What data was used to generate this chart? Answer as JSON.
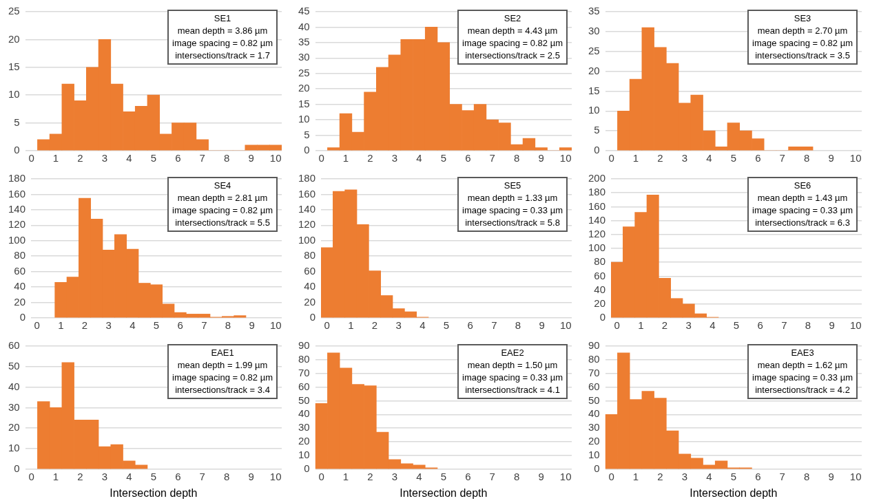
{
  "chart_data": [
    {
      "type": "histogram",
      "title": "SE1",
      "annotations": [
        "mean depth = 3.86 µm",
        "image spacing = 0.82 µm",
        "intersections/track = 1.7"
      ],
      "color": "#ed7d31",
      "grid": "y",
      "xlim": [
        -0.25,
        10.25
      ],
      "xticks": [
        0,
        1,
        2,
        3,
        4,
        5,
        6,
        7,
        8,
        9,
        10
      ],
      "ylim": [
        0,
        25
      ],
      "yticks": [
        0,
        5,
        10,
        15,
        20,
        25
      ],
      "bins": [
        0.25,
        0.75,
        1.25,
        1.75,
        2.25,
        2.75,
        3.25,
        3.75,
        4.25,
        4.75,
        5.25,
        5.75,
        6.25,
        6.75,
        7.25,
        7.75,
        8.25,
        8.75,
        9.25,
        9.75,
        10.25
      ],
      "values": [
        2,
        3,
        12,
        9,
        15,
        20,
        12,
        7,
        8,
        10,
        3,
        5,
        5,
        2,
        0,
        0,
        0,
        1,
        1,
        1
      ]
    },
    {
      "type": "histogram",
      "title": "SE2",
      "annotations": [
        "mean depth = 4.43 µm",
        "image spacing = 0.82 µm",
        "intersections/track = 2.5"
      ],
      "color": "#ed7d31",
      "grid": "y",
      "xlim": [
        -0.25,
        10.25
      ],
      "xticks": [
        0,
        1,
        2,
        3,
        4,
        5,
        6,
        7,
        8,
        9,
        10
      ],
      "ylim": [
        0,
        45
      ],
      "yticks": [
        0,
        5,
        10,
        15,
        20,
        25,
        30,
        35,
        40,
        45
      ],
      "bins": [
        0.25,
        0.75,
        1.25,
        1.75,
        2.25,
        2.75,
        3.25,
        3.75,
        4.25,
        4.75,
        5.25,
        5.75,
        6.25,
        6.75,
        7.25,
        7.75,
        8.25,
        8.75,
        9.25,
        9.75,
        10.25
      ],
      "values": [
        1,
        12,
        6,
        19,
        27,
        31,
        36,
        36,
        40,
        35,
        15,
        13,
        15,
        10,
        9,
        2,
        4,
        1,
        0,
        1
      ]
    },
    {
      "type": "histogram",
      "title": "SE3",
      "annotations": [
        "mean depth = 2.70 µm",
        "image spacing = 0.82 µm",
        "intersections/track = 3.5"
      ],
      "color": "#ed7d31",
      "grid": "y",
      "xlim": [
        -0.25,
        10.25
      ],
      "xticks": [
        0,
        1,
        2,
        3,
        4,
        5,
        6,
        7,
        8,
        9,
        10
      ],
      "ylim": [
        0,
        35
      ],
      "yticks": [
        0,
        5,
        10,
        15,
        20,
        25,
        30,
        35
      ],
      "bins": [
        0.25,
        0.75,
        1.25,
        1.75,
        2.25,
        2.75,
        3.25,
        3.75,
        4.25,
        4.75,
        5.25,
        5.75,
        6.25,
        6.75,
        7.25,
        7.75,
        8.25
      ],
      "values": [
        10,
        18,
        31,
        26,
        22,
        12,
        14,
        5,
        1,
        7,
        5,
        3,
        0,
        0,
        1,
        1
      ]
    },
    {
      "type": "histogram",
      "title": "SE4",
      "annotations": [
        "mean depth = 2.81 µm",
        "image spacing = 0.82 µm",
        "intersections/track = 5.5"
      ],
      "color": "#ed7d31",
      "grid": "y",
      "xlim": [
        -0.25,
        10.25
      ],
      "xticks": [
        0,
        1,
        2,
        3,
        4,
        5,
        6,
        7,
        8,
        9,
        10
      ],
      "ylim": [
        0,
        180
      ],
      "yticks": [
        0,
        20,
        40,
        60,
        80,
        100,
        120,
        140,
        160,
        180
      ],
      "bins": [
        0.75,
        1.25,
        1.75,
        2.25,
        2.75,
        3.25,
        3.75,
        4.25,
        4.75,
        5.25,
        5.75,
        6.25,
        6.75,
        7.25,
        7.75,
        8.25,
        8.75
      ],
      "values": [
        46,
        53,
        155,
        128,
        88,
        108,
        89,
        45,
        43,
        18,
        7,
        5,
        5,
        1,
        2,
        3
      ]
    },
    {
      "type": "histogram",
      "title": "SE5",
      "annotations": [
        "mean depth = 1.33 µm",
        "image spacing = 0.33 µm",
        "intersections/track = 5.8"
      ],
      "color": "#ed7d31",
      "grid": "y",
      "xlim": [
        -0.25,
        10.25
      ],
      "xticks": [
        0,
        1,
        2,
        3,
        4,
        5,
        6,
        7,
        8,
        9,
        10
      ],
      "ylim": [
        0,
        180
      ],
      "yticks": [
        0,
        20,
        40,
        60,
        80,
        100,
        120,
        140,
        160,
        180
      ],
      "bins": [
        -0.25,
        0.25,
        0.75,
        1.25,
        1.75,
        2.25,
        2.75,
        3.25,
        3.75,
        4.25
      ],
      "values": [
        91,
        164,
        166,
        121,
        61,
        29,
        12,
        8,
        1
      ]
    },
    {
      "type": "histogram",
      "title": "SE6",
      "annotations": [
        "mean depth = 1.43 µm",
        "image spacing = 0.33 µm",
        "intersections/track = 6.3"
      ],
      "color": "#ed7d31",
      "grid": "y",
      "xlim": [
        -0.25,
        10.25
      ],
      "xticks": [
        0,
        1,
        2,
        3,
        4,
        5,
        6,
        7,
        8,
        9,
        10
      ],
      "ylim": [
        0,
        200
      ],
      "yticks": [
        0,
        20,
        40,
        60,
        80,
        100,
        120,
        140,
        160,
        180,
        200
      ],
      "bins": [
        -0.25,
        0.25,
        0.75,
        1.25,
        1.75,
        2.25,
        2.75,
        3.25,
        3.75,
        4.25
      ],
      "values": [
        80,
        131,
        152,
        177,
        57,
        28,
        20,
        6,
        1
      ]
    },
    {
      "type": "histogram",
      "title": "EAE1",
      "xlabel": "Intersection depth",
      "annotations": [
        "mean depth = 1.99 µm",
        "image spacing = 0.82 µm",
        "intersections/track = 3.4"
      ],
      "color": "#ed7d31",
      "grid": "y",
      "xlim": [
        -0.25,
        10.25
      ],
      "xticks": [
        0,
        1,
        2,
        3,
        4,
        5,
        6,
        7,
        8,
        9,
        10
      ],
      "ylim": [
        0,
        60
      ],
      "yticks": [
        0,
        10,
        20,
        30,
        40,
        50,
        60
      ],
      "bins": [
        0.25,
        0.75,
        1.25,
        1.75,
        2.25,
        2.75,
        3.25,
        3.75,
        4.25,
        4.75
      ],
      "values": [
        33,
        30,
        52,
        24,
        24,
        11,
        12,
        4,
        2
      ]
    },
    {
      "type": "histogram",
      "title": "EAE2",
      "xlabel": "Intersection depth",
      "annotations": [
        "mean depth = 1.50 µm",
        "image spacing = 0.33 µm",
        "intersections/track = 4.1"
      ],
      "color": "#ed7d31",
      "grid": "y",
      "xlim": [
        -0.25,
        10.25
      ],
      "xticks": [
        0,
        1,
        2,
        3,
        4,
        5,
        6,
        7,
        8,
        9,
        10
      ],
      "ylim": [
        0,
        90
      ],
      "yticks": [
        0,
        10,
        20,
        30,
        40,
        50,
        60,
        70,
        80,
        90
      ],
      "bins": [
        -0.25,
        0.25,
        0.75,
        1.25,
        1.75,
        2.25,
        2.75,
        3.25,
        3.75,
        4.25,
        4.75
      ],
      "values": [
        48,
        85,
        74,
        62,
        61,
        27,
        7,
        4,
        3,
        1
      ]
    },
    {
      "type": "histogram",
      "title": "EAE3",
      "xlabel": "Intersection depth",
      "annotations": [
        "mean depth = 1.62 µm",
        "image spacing = 0.33 µm",
        "intersections/track = 4.2"
      ],
      "color": "#ed7d31",
      "grid": "y",
      "xlim": [
        -0.25,
        10.25
      ],
      "xticks": [
        0,
        1,
        2,
        3,
        4,
        5,
        6,
        7,
        8,
        9,
        10
      ],
      "ylim": [
        0,
        90
      ],
      "yticks": [
        0,
        10,
        20,
        30,
        40,
        50,
        60,
        70,
        80,
        90
      ],
      "bins": [
        -0.25,
        0.25,
        0.75,
        1.25,
        1.75,
        2.25,
        2.75,
        3.25,
        3.75,
        4.25,
        4.75,
        5.25,
        5.75
      ],
      "values": [
        40,
        85,
        51,
        57,
        52,
        28,
        11,
        8,
        3,
        6,
        1,
        1
      ]
    }
  ]
}
